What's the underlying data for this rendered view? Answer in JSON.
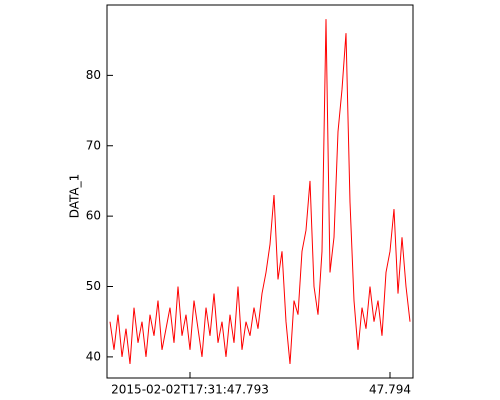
{
  "chart_data": {
    "type": "line",
    "y_label": "DATA_1",
    "color": "#ff0000",
    "x": [
      47.7926,
      47.79262,
      47.79264,
      47.79266,
      47.79268,
      47.7927,
      47.79272,
      47.79274,
      47.79276,
      47.79278,
      47.7928,
      47.79282,
      47.79284,
      47.79286,
      47.79288,
      47.7929,
      47.79292,
      47.79294,
      47.79296,
      47.79298,
      47.793,
      47.79302,
      47.79304,
      47.79306,
      47.79308,
      47.7931,
      47.79312,
      47.79314,
      47.79316,
      47.79318,
      47.7932,
      47.79322,
      47.79324,
      47.79326,
      47.79328,
      47.7933,
      47.79332,
      47.79334,
      47.79336,
      47.79338,
      47.7934,
      47.79342,
      47.79344,
      47.79346,
      47.79348,
      47.7935,
      47.79352,
      47.79354,
      47.79356,
      47.79358,
      47.7936,
      47.79362,
      47.79364,
      47.79366,
      47.79368,
      47.7937,
      47.79372,
      47.79374,
      47.79376,
      47.79378,
      47.7938,
      47.79382,
      47.79384,
      47.79386,
      47.79388,
      47.7939,
      47.79392,
      47.79394,
      47.79396,
      47.79398,
      47.794,
      47.79402,
      47.79404,
      47.79406,
      47.79408,
      47.7941
    ],
    "values": [
      45,
      41,
      46,
      40,
      44,
      39,
      47,
      42,
      45,
      40,
      46,
      43,
      48,
      41,
      44,
      47,
      42,
      50,
      43,
      46,
      41,
      48,
      44,
      40,
      47,
      43,
      49,
      42,
      45,
      40,
      46,
      42,
      50,
      41,
      45,
      43,
      47,
      44,
      49,
      52,
      56,
      63,
      51,
      55,
      45,
      39,
      48,
      46,
      55,
      58,
      65,
      50,
      46,
      55,
      88,
      52,
      57,
      72,
      78,
      86,
      62,
      48,
      41,
      47,
      44,
      50,
      45,
      48,
      43,
      52,
      55,
      61,
      49,
      57,
      50,
      45
    ],
    "xlim": [
      47.792585,
      47.794115
    ],
    "xticks": [
      {
        "value": 47.793,
        "label": "2015-02-02T17:31:47.793"
      },
      {
        "value": 47.794,
        "label": "47.794"
      }
    ],
    "ylim": [
      37,
      90
    ],
    "yticks": [
      40,
      50,
      60,
      70,
      80
    ],
    "grid": false
  }
}
